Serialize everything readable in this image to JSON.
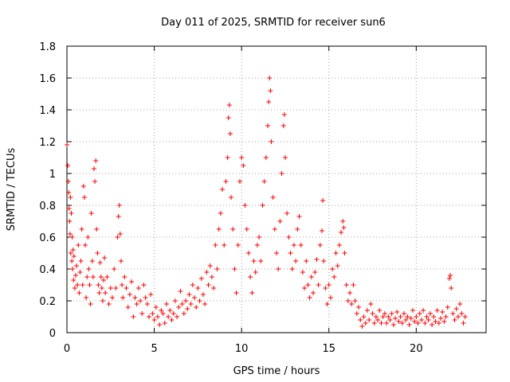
{
  "chart_data": {
    "type": "scatter",
    "title": "Day 011 of 2025, SRMTID for receiver sun6",
    "xlabel": "GPS time / hours",
    "ylabel": "SRMTID / TECUs",
    "xlim": [
      0,
      24
    ],
    "ylim": [
      0,
      1.8
    ],
    "xticks": [
      0,
      5,
      10,
      15,
      20
    ],
    "xtick_labels": [
      "0",
      "5",
      "10",
      "15",
      "20"
    ],
    "yticks": [
      0,
      0.2,
      0.4,
      0.6,
      0.8,
      1.0,
      1.2,
      1.4,
      1.6,
      1.8
    ],
    "ytick_labels": [
      "0",
      "0.2",
      "0.4",
      "0.6",
      "0.8",
      "1",
      "1.2",
      "1.4",
      "1.6",
      "1.8"
    ],
    "grid": true,
    "marker": "plus",
    "color": "#ff0000",
    "series": [
      {
        "name": "SRMTID",
        "points": [
          [
            0.0,
            1.18
          ],
          [
            0.05,
            1.05
          ],
          [
            0.08,
            0.95
          ],
          [
            0.1,
            0.88
          ],
          [
            0.12,
            0.78
          ],
          [
            0.15,
            0.7
          ],
          [
            0.18,
            0.62
          ],
          [
            0.2,
            0.85
          ],
          [
            0.22,
            0.5
          ],
          [
            0.25,
            0.75
          ],
          [
            0.28,
            0.45
          ],
          [
            0.3,
            0.6
          ],
          [
            0.32,
            0.4
          ],
          [
            0.35,
            0.52
          ],
          [
            0.38,
            0.33
          ],
          [
            0.4,
            0.48
          ],
          [
            0.45,
            0.28
          ],
          [
            0.5,
            0.36
          ],
          [
            0.55,
            0.42
          ],
          [
            0.6,
            0.3
          ],
          [
            0.65,
            0.55
          ],
          [
            0.7,
            0.25
          ],
          [
            0.75,
            0.38
          ],
          [
            0.8,
            0.45
          ],
          [
            0.85,
            0.65
          ],
          [
            0.9,
            0.3
          ],
          [
            0.95,
            0.92
          ],
          [
            1.0,
            0.85
          ],
          [
            1.05,
            0.55
          ],
          [
            1.1,
            0.22
          ],
          [
            1.15,
            0.35
          ],
          [
            1.2,
            0.6
          ],
          [
            1.25,
            0.4
          ],
          [
            1.3,
            0.3
          ],
          [
            1.35,
            0.18
          ],
          [
            1.4,
            0.75
          ],
          [
            1.45,
            0.45
          ],
          [
            1.5,
            0.35
          ],
          [
            1.55,
            1.03
          ],
          [
            1.6,
            0.95
          ],
          [
            1.65,
            1.08
          ],
          [
            1.7,
            0.65
          ],
          [
            1.75,
            0.5
          ],
          [
            1.8,
            0.3
          ],
          [
            1.85,
            0.25
          ],
          [
            1.9,
            0.44
          ],
          [
            1.95,
            0.35
          ],
          [
            2.0,
            0.28
          ],
          [
            2.05,
            0.2
          ],
          [
            2.1,
            0.33
          ],
          [
            2.15,
            0.47
          ],
          [
            2.2,
            0.25
          ],
          [
            2.3,
            0.35
          ],
          [
            2.4,
            0.18
          ],
          [
            2.5,
            0.28
          ],
          [
            2.6,
            0.22
          ],
          [
            2.7,
            0.4
          ],
          [
            2.8,
            0.28
          ],
          [
            2.9,
            0.6
          ],
          [
            2.95,
            0.73
          ],
          [
            3.0,
            0.8
          ],
          [
            3.05,
            0.62
          ],
          [
            3.1,
            0.45
          ],
          [
            3.15,
            0.3
          ],
          [
            3.2,
            0.22
          ],
          [
            3.3,
            0.35
          ],
          [
            3.4,
            0.28
          ],
          [
            3.5,
            0.16
          ],
          [
            3.6,
            0.24
          ],
          [
            3.7,
            0.32
          ],
          [
            3.8,
            0.1
          ],
          [
            3.9,
            0.22
          ],
          [
            4.0,
            0.18
          ],
          [
            4.1,
            0.28
          ],
          [
            4.2,
            0.2
          ],
          [
            4.3,
            0.12
          ],
          [
            4.4,
            0.3
          ],
          [
            4.5,
            0.22
          ],
          [
            4.6,
            0.18
          ],
          [
            4.7,
            0.1
          ],
          [
            4.8,
            0.24
          ],
          [
            4.9,
            0.12
          ],
          [
            5.0,
            0.08
          ],
          [
            5.1,
            0.16
          ],
          [
            5.2,
            0.1
          ],
          [
            5.3,
            0.05
          ],
          [
            5.4,
            0.14
          ],
          [
            5.5,
            0.12
          ],
          [
            5.6,
            0.06
          ],
          [
            5.7,
            0.18
          ],
          [
            5.8,
            0.1
          ],
          [
            5.9,
            0.14
          ],
          [
            6.0,
            0.08
          ],
          [
            6.1,
            0.12
          ],
          [
            6.2,
            0.2
          ],
          [
            6.3,
            0.1
          ],
          [
            6.4,
            0.16
          ],
          [
            6.5,
            0.26
          ],
          [
            6.6,
            0.18
          ],
          [
            6.7,
            0.12
          ],
          [
            6.8,
            0.2
          ],
          [
            6.9,
            0.15
          ],
          [
            7.0,
            0.24
          ],
          [
            7.1,
            0.18
          ],
          [
            7.2,
            0.3
          ],
          [
            7.3,
            0.22
          ],
          [
            7.4,
            0.16
          ],
          [
            7.5,
            0.28
          ],
          [
            7.6,
            0.2
          ],
          [
            7.7,
            0.34
          ],
          [
            7.8,
            0.24
          ],
          [
            7.9,
            0.18
          ],
          [
            8.0,
            0.38
          ],
          [
            8.1,
            0.3
          ],
          [
            8.2,
            0.42
          ],
          [
            8.3,
            0.35
          ],
          [
            8.4,
            0.28
          ],
          [
            8.5,
            0.55
          ],
          [
            8.6,
            0.4
          ],
          [
            8.7,
            0.65
          ],
          [
            8.8,
            0.75
          ],
          [
            8.9,
            0.9
          ],
          [
            9.0,
            0.55
          ],
          [
            9.1,
            0.95
          ],
          [
            9.2,
            1.1
          ],
          [
            9.25,
            1.35
          ],
          [
            9.3,
            1.43
          ],
          [
            9.35,
            1.25
          ],
          [
            9.4,
            0.85
          ],
          [
            9.5,
            0.65
          ],
          [
            9.6,
            0.4
          ],
          [
            9.7,
            0.25
          ],
          [
            9.8,
            0.55
          ],
          [
            9.9,
            0.95
          ],
          [
            10.0,
            1.1
          ],
          [
            10.1,
            1.05
          ],
          [
            10.2,
            0.8
          ],
          [
            10.3,
            0.65
          ],
          [
            10.4,
            0.5
          ],
          [
            10.5,
            0.35
          ],
          [
            10.6,
            0.25
          ],
          [
            10.7,
            0.45
          ],
          [
            10.8,
            0.38
          ],
          [
            10.9,
            0.55
          ],
          [
            11.0,
            0.6
          ],
          [
            11.1,
            0.45
          ],
          [
            11.2,
            0.8
          ],
          [
            11.3,
            0.95
          ],
          [
            11.4,
            1.1
          ],
          [
            11.5,
            1.3
          ],
          [
            11.55,
            1.45
          ],
          [
            11.6,
            1.6
          ],
          [
            11.65,
            1.52
          ],
          [
            11.7,
            1.2
          ],
          [
            11.8,
            0.85
          ],
          [
            11.9,
            0.65
          ],
          [
            12.0,
            0.5
          ],
          [
            12.1,
            0.4
          ],
          [
            12.2,
            0.7
          ],
          [
            12.3,
            1.0
          ],
          [
            12.4,
            1.3
          ],
          [
            12.45,
            1.37
          ],
          [
            12.5,
            1.1
          ],
          [
            12.6,
            0.75
          ],
          [
            12.7,
            0.6
          ],
          [
            12.8,
            0.5
          ],
          [
            12.9,
            0.4
          ],
          [
            13.0,
            0.55
          ],
          [
            13.1,
            0.45
          ],
          [
            13.2,
            0.65
          ],
          [
            13.3,
            0.73
          ],
          [
            13.4,
            0.55
          ],
          [
            13.5,
            0.38
          ],
          [
            13.6,
            0.28
          ],
          [
            13.7,
            0.45
          ],
          [
            13.8,
            0.3
          ],
          [
            13.9,
            0.22
          ],
          [
            14.0,
            0.35
          ],
          [
            14.1,
            0.25
          ],
          [
            14.2,
            0.38
          ],
          [
            14.3,
            0.46
          ],
          [
            14.4,
            0.3
          ],
          [
            14.5,
            0.55
          ],
          [
            14.6,
            0.64
          ],
          [
            14.65,
            0.83
          ],
          [
            14.7,
            0.45
          ],
          [
            14.8,
            0.28
          ],
          [
            14.9,
            0.18
          ],
          [
            15.0,
            0.3
          ],
          [
            15.1,
            0.22
          ],
          [
            15.2,
            0.4
          ],
          [
            15.3,
            0.35
          ],
          [
            15.4,
            0.5
          ],
          [
            15.5,
            0.42
          ],
          [
            15.6,
            0.55
          ],
          [
            15.7,
            0.63
          ],
          [
            15.8,
            0.7
          ],
          [
            15.85,
            0.66
          ],
          [
            15.9,
            0.5
          ],
          [
            16.0,
            0.3
          ],
          [
            16.1,
            0.2
          ],
          [
            16.2,
            0.25
          ],
          [
            16.3,
            0.18
          ],
          [
            16.4,
            0.3
          ],
          [
            16.5,
            0.2
          ],
          [
            16.6,
            0.12
          ],
          [
            16.7,
            0.16
          ],
          [
            16.8,
            0.08
          ],
          [
            16.9,
            0.04
          ],
          [
            17.0,
            0.1
          ],
          [
            17.1,
            0.06
          ],
          [
            17.2,
            0.14
          ],
          [
            17.3,
            0.08
          ],
          [
            17.4,
            0.18
          ],
          [
            17.5,
            0.12
          ],
          [
            17.6,
            0.06
          ],
          [
            17.7,
            0.1
          ],
          [
            17.8,
            0.08
          ],
          [
            17.9,
            0.14
          ],
          [
            18.0,
            0.06
          ],
          [
            18.1,
            0.1
          ],
          [
            18.2,
            0.12
          ],
          [
            18.3,
            0.06
          ],
          [
            18.4,
            0.1
          ],
          [
            18.5,
            0.08
          ],
          [
            18.6,
            0.12
          ],
          [
            18.7,
            0.05
          ],
          [
            18.8,
            0.09
          ],
          [
            18.9,
            0.13
          ],
          [
            19.0,
            0.07
          ],
          [
            19.1,
            0.1
          ],
          [
            19.2,
            0.06
          ],
          [
            19.3,
            0.12
          ],
          [
            19.4,
            0.08
          ],
          [
            19.5,
            0.1
          ],
          [
            19.6,
            0.05
          ],
          [
            19.7,
            0.09
          ],
          [
            19.8,
            0.14
          ],
          [
            19.9,
            0.07
          ],
          [
            20.0,
            0.1
          ],
          [
            20.1,
            0.06
          ],
          [
            20.2,
            0.12
          ],
          [
            20.3,
            0.08
          ],
          [
            20.4,
            0.14
          ],
          [
            20.5,
            0.06
          ],
          [
            20.6,
            0.1
          ],
          [
            20.7,
            0.08
          ],
          [
            20.8,
            0.12
          ],
          [
            20.9,
            0.05
          ],
          [
            21.0,
            0.1
          ],
          [
            21.1,
            0.07
          ],
          [
            21.2,
            0.14
          ],
          [
            21.3,
            0.06
          ],
          [
            21.4,
            0.09
          ],
          [
            21.5,
            0.13
          ],
          [
            21.6,
            0.07
          ],
          [
            21.7,
            0.1
          ],
          [
            21.8,
            0.16
          ],
          [
            21.9,
            0.34
          ],
          [
            21.95,
            0.36
          ],
          [
            22.0,
            0.28
          ],
          [
            22.1,
            0.12
          ],
          [
            22.2,
            0.08
          ],
          [
            22.3,
            0.15
          ],
          [
            22.4,
            0.1
          ],
          [
            22.5,
            0.18
          ],
          [
            22.6,
            0.12
          ],
          [
            22.7,
            0.06
          ],
          [
            22.8,
            0.1
          ]
        ]
      }
    ]
  }
}
